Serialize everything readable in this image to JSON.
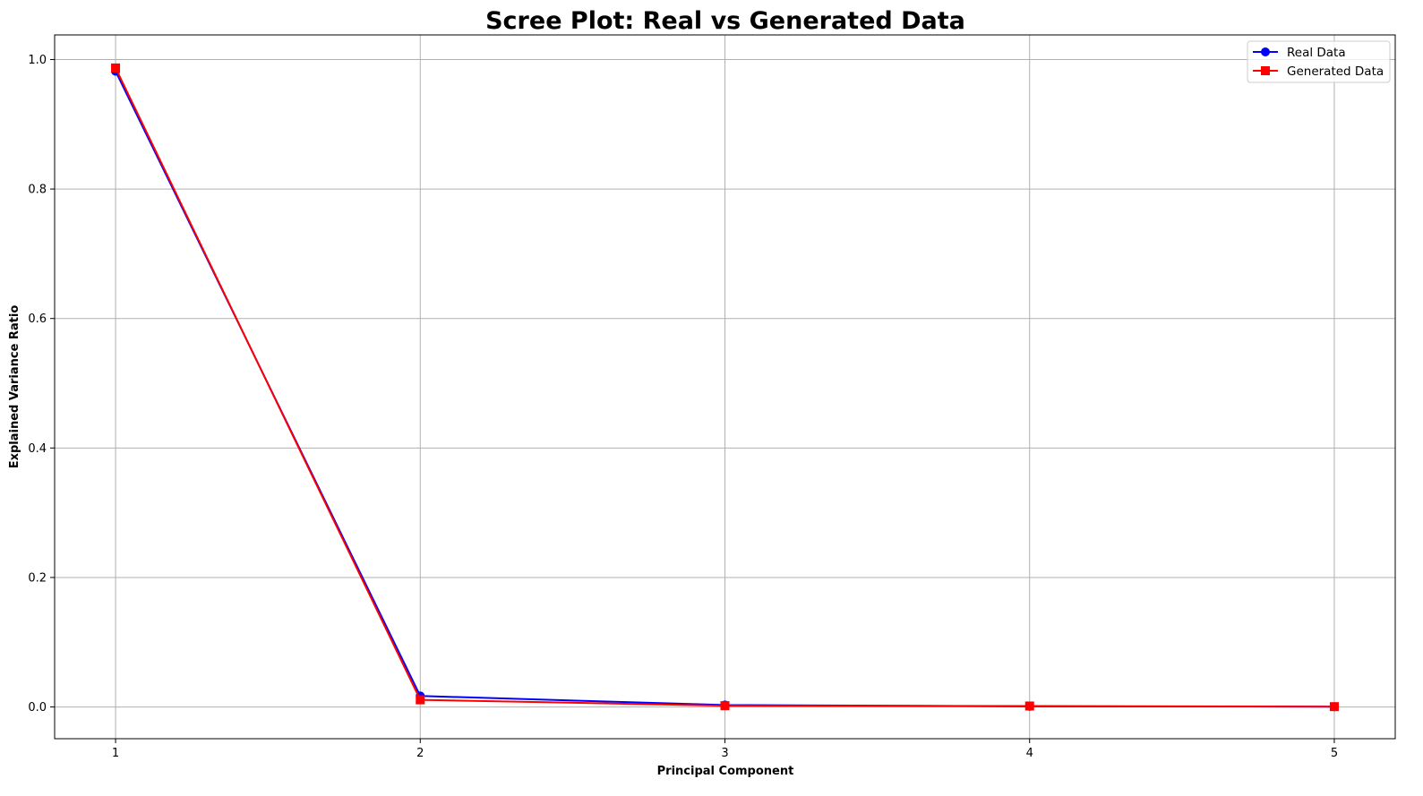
{
  "chart_data": {
    "type": "line",
    "title": "Scree Plot: Real vs Generated Data",
    "xlabel": "Principal Component",
    "ylabel": "Explained Variance Ratio",
    "x": [
      1,
      2,
      3,
      4,
      5
    ],
    "xticks": [
      "1",
      "2",
      "3",
      "4",
      "5"
    ],
    "yticks": [
      "0.0",
      "0.2",
      "0.4",
      "0.6",
      "0.8",
      "1.0"
    ],
    "xlim": [
      0.8,
      5.2
    ],
    "ylim": [
      -0.049,
      1.038
    ],
    "grid": true,
    "legend_position": "top-right",
    "series": [
      {
        "name": "Real Data",
        "values": [
          0.982,
          0.017,
          0.003,
          0.001,
          0.0005
        ],
        "color": "#0000ff",
        "marker": "circle"
      },
      {
        "name": "Generated Data",
        "values": [
          0.987,
          0.011,
          0.002,
          0.0015,
          0.0005
        ],
        "color": "#ff0000",
        "marker": "square"
      }
    ]
  }
}
